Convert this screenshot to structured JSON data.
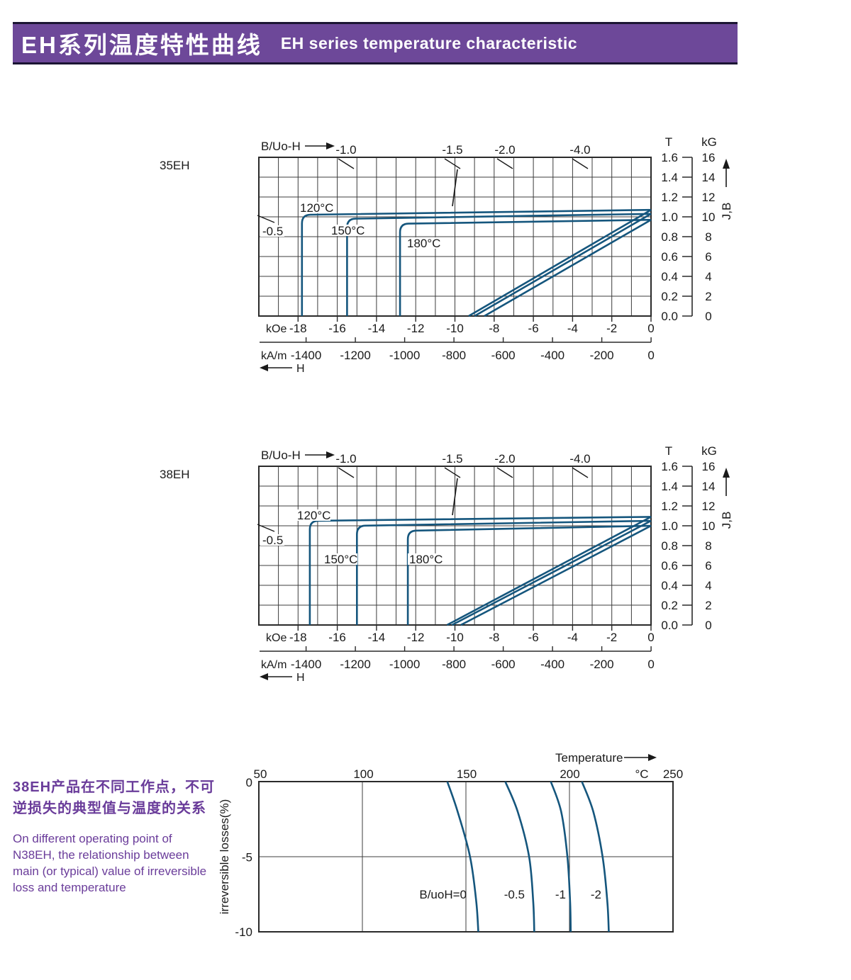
{
  "header": {
    "title_zh": "EH系列温度特性曲线",
    "title_en": "EH  series temperature characteristic"
  },
  "colors": {
    "banner": "#6d4899",
    "banner_border": "#1b1533",
    "curve": "#15567d",
    "purple_text": "#6a3c9a",
    "grid": "#3c3c3c"
  },
  "labels": {
    "chart1_name": "35EH",
    "chart2_name": "38EH",
    "b_uo_h": "B/Uo-H",
    "koe": "kOe",
    "kam": "kA/m",
    "h": "H",
    "t": "T",
    "kg": "kG",
    "jb": "J,B",
    "degc": "°C",
    "temperature": "Temperature",
    "irr_axis": "irreversible  losses(%)"
  },
  "note": {
    "zh_lines": [
      "38EH产品在不同工作点，不可",
      "逆损失的典型值与温度的关系"
    ],
    "en_lines": [
      "On different operating point of",
      "N38EH,  the relationship between",
      "main (or typical) value of irreversible",
      "loss and temperature"
    ]
  },
  "chart_data": [
    {
      "type": "line",
      "title": "35EH",
      "xlabel": "H",
      "x_unit_primary": "kOe",
      "x_unit_secondary": "kA/m",
      "x_ticks_kOe": [
        "-18",
        "-16",
        "-14",
        "-12",
        "-10",
        "-8",
        "-6",
        "-4",
        "-2",
        "0"
      ],
      "x_ticks_kAm": [
        "-1400",
        "-1200",
        "-1000",
        "-800",
        "-600",
        "-400",
        "-200",
        "0"
      ],
      "ylabel": "J,B",
      "y_unit_primary": "T",
      "y_unit_secondary": "kG",
      "y_ticks_T": [
        "1.6",
        "1.4",
        "1.2",
        "1.0",
        "0.8",
        "0.6",
        "0.4",
        "0.2",
        "0.0"
      ],
      "y_ticks_kG": [
        "16",
        "14",
        "12",
        "10",
        "8",
        "6",
        "4",
        "2",
        "0"
      ],
      "xlim_kOe": [
        -20,
        0
      ],
      "ylim_T": [
        0,
        1.6
      ],
      "grid": "on",
      "load_lines": {
        "top": [
          "-1.0",
          "-1.5",
          "-2.0",
          "-4.0"
        ],
        "left": "-0.5"
      },
      "curve_labels": [
        "120°C",
        "150°C",
        "180°C"
      ],
      "series": [
        {
          "name": "J 120°C",
          "shape": "knee",
          "points": [
            [
              -17.8,
              0
            ],
            [
              -17.8,
              1.02
            ],
            [
              0,
              1.07
            ]
          ]
        },
        {
          "name": "J 150°C",
          "shape": "knee",
          "points": [
            [
              -15.5,
              0
            ],
            [
              -15.5,
              0.98
            ],
            [
              0,
              1.03
            ]
          ]
        },
        {
          "name": "J 180°C",
          "shape": "knee",
          "points": [
            [
              -12.8,
              0
            ],
            [
              -12.8,
              0.93
            ],
            [
              0,
              0.97
            ]
          ]
        },
        {
          "name": "B 120°C",
          "shape": "line",
          "points": [
            [
              -9.3,
              0
            ],
            [
              0,
              1.07
            ]
          ]
        },
        {
          "name": "B 150°C",
          "shape": "line",
          "points": [
            [
              -9.0,
              0
            ],
            [
              0,
              1.03
            ]
          ]
        },
        {
          "name": "B 180°C",
          "shape": "line",
          "points": [
            [
              -8.5,
              0
            ],
            [
              0,
              0.97
            ]
          ]
        }
      ]
    },
    {
      "type": "line",
      "title": "38EH",
      "xlabel": "H",
      "x_unit_primary": "kOe",
      "x_unit_secondary": "kA/m",
      "x_ticks_kOe": [
        "-18",
        "-16",
        "-14",
        "-12",
        "-10",
        "-8",
        "-6",
        "-4",
        "-2",
        "0"
      ],
      "x_ticks_kAm": [
        "-1400",
        "-1200",
        "-1000",
        "-800",
        "-600",
        "-400",
        "-200",
        "0"
      ],
      "ylabel": "J,B",
      "y_unit_primary": "T",
      "y_unit_secondary": "kG",
      "y_ticks_T": [
        "1.6",
        "1.4",
        "1.2",
        "1.0",
        "0.8",
        "0.6",
        "0.4",
        "0.2",
        "0.0"
      ],
      "y_ticks_kG": [
        "16",
        "14",
        "12",
        "10",
        "8",
        "6",
        "4",
        "2",
        "0"
      ],
      "xlim_kOe": [
        -20,
        0
      ],
      "ylim_T": [
        0,
        1.6
      ],
      "grid": "on",
      "load_lines": {
        "top": [
          "-1.0",
          "-1.5",
          "-2.0",
          "-4.0"
        ],
        "left": "-0.5"
      },
      "curve_labels": [
        "120°C",
        "150°C",
        "180°C"
      ],
      "series": [
        {
          "name": "J 120°C",
          "shape": "knee",
          "points": [
            [
              -17.4,
              0
            ],
            [
              -17.4,
              1.05
            ],
            [
              0,
              1.09
            ]
          ]
        },
        {
          "name": "J 150°C",
          "shape": "knee",
          "points": [
            [
              -15.0,
              0
            ],
            [
              -15.0,
              1.0
            ],
            [
              0,
              1.05
            ]
          ]
        },
        {
          "name": "J 180°C",
          "shape": "knee",
          "points": [
            [
              -12.4,
              0
            ],
            [
              -12.4,
              0.95
            ],
            [
              0,
              1.0
            ]
          ]
        },
        {
          "name": "B 120°C",
          "shape": "line",
          "points": [
            [
              -10.4,
              0
            ],
            [
              0,
              1.09
            ]
          ]
        },
        {
          "name": "B 150°C",
          "shape": "line",
          "points": [
            [
              -10.15,
              0
            ],
            [
              0,
              1.05
            ]
          ]
        },
        {
          "name": "B 180°C",
          "shape": "line",
          "points": [
            [
              -9.7,
              0
            ],
            [
              0,
              1.0
            ]
          ]
        }
      ]
    },
    {
      "type": "line",
      "title": "N38EH irreversible loss vs temperature",
      "xlabel": "Temperature",
      "x_unit": "°C",
      "x_ticks": [
        "50",
        "100",
        "150",
        "200",
        "250"
      ],
      "ylabel": "irreversible  losses(%)",
      "y_ticks": [
        "0",
        "-5",
        "-10"
      ],
      "xlim": [
        50,
        250
      ],
      "ylim": [
        -10,
        0
      ],
      "grid": "on",
      "curve_labels": [
        "B/uoH=0",
        "-0.5",
        "-1",
        "-2"
      ],
      "series": [
        {
          "name": "B/uoH=0",
          "shape": "smooth",
          "points": [
            [
              141,
              0
            ],
            [
              146,
              -2
            ],
            [
              152,
              -5
            ],
            [
              155,
              -8
            ],
            [
              156,
              -10
            ]
          ]
        },
        {
          "name": "-0.5",
          "shape": "smooth",
          "points": [
            [
              169,
              0
            ],
            [
              175,
              -2
            ],
            [
              180.5,
              -5
            ],
            [
              182.5,
              -8
            ],
            [
              183,
              -10
            ]
          ]
        },
        {
          "name": "-1",
          "shape": "smooth",
          "points": [
            [
              191,
              0
            ],
            [
              196,
              -2
            ],
            [
              199,
              -5
            ],
            [
              200.3,
              -8
            ],
            [
              200.6,
              -10
            ]
          ]
        },
        {
          "name": "-2",
          "shape": "smooth",
          "points": [
            [
              206,
              0
            ],
            [
              211.5,
              -2
            ],
            [
              216,
              -5
            ],
            [
              218.3,
              -8
            ],
            [
              219,
              -10
            ]
          ]
        }
      ]
    }
  ]
}
